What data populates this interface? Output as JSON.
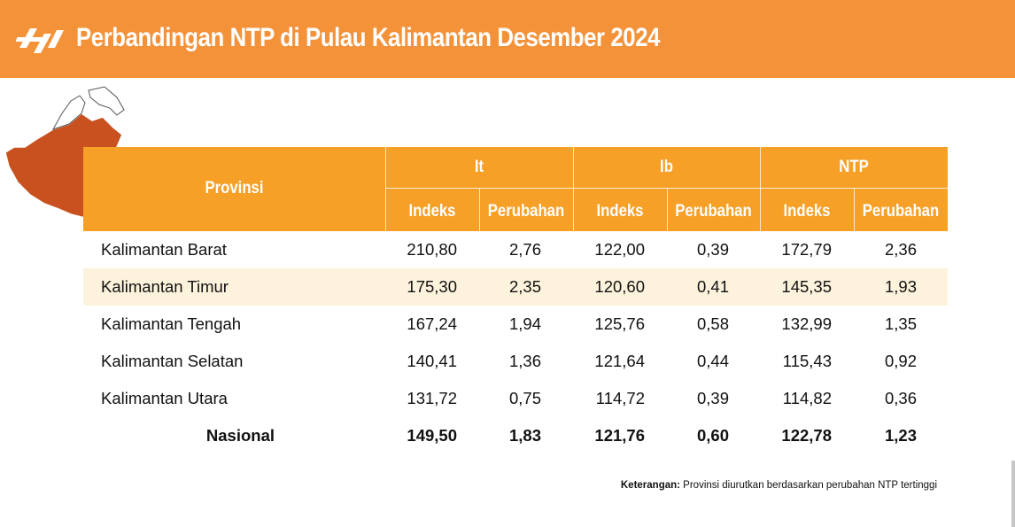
{
  "header": {
    "title": "Perbandingan NTP di Pulau Kalimantan Desember 2024",
    "logo_icon": "bps-logo-icon",
    "background": "#f4923a"
  },
  "map_icon": "kalimantan-map-icon",
  "table": {
    "province_header": "Provinsi",
    "groups": [
      "It",
      "Ib",
      "NTP"
    ],
    "sub_headers": [
      "Indeks",
      "Perubahan",
      "Indeks",
      "Perubahan",
      "Indeks",
      "Perubahan"
    ],
    "rows": [
      {
        "provinsi": "Kalimantan Barat",
        "values": [
          "210,80",
          "2,76",
          "122,00",
          "0,39",
          "172,79",
          "2,36"
        ]
      },
      {
        "provinsi": "Kalimantan Timur",
        "values": [
          "175,30",
          "2,35",
          "120,60",
          "0,41",
          "145,35",
          "1,93"
        ]
      },
      {
        "provinsi": "Kalimantan Tengah",
        "values": [
          "167,24",
          "1,94",
          "125,76",
          "0,58",
          "132,99",
          "1,35"
        ]
      },
      {
        "provinsi": "Kalimantan Selatan",
        "values": [
          "140,41",
          "1,36",
          "121,64",
          "0,44",
          "115,43",
          "0,92"
        ]
      },
      {
        "provinsi": "Kalimantan Utara",
        "values": [
          "131,72",
          "0,75",
          "114,72",
          "0,39",
          "114,82",
          "0,36"
        ]
      }
    ],
    "total": {
      "provinsi": "Nasional",
      "values": [
        "149,50",
        "1,83",
        "121,76",
        "0,60",
        "122,78",
        "1,23"
      ]
    },
    "header_color": "#f6a028",
    "alt_row_color": "#fdf3dc"
  },
  "note": {
    "label": "Keterangan:",
    "text": " Provinsi diurutkan berdasarkan perubahan NTP tertinggi"
  }
}
